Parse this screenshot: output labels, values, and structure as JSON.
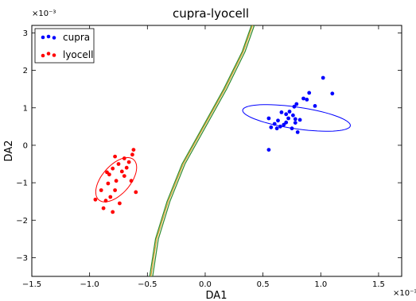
{
  "chart_data": {
    "type": "scatter",
    "title": "cupra-lyocell",
    "xlabel": "DA1",
    "ylabel": "DA2",
    "xlim": [
      -1.5,
      1.7
    ],
    "ylim": [
      -3.5,
      3.2
    ],
    "x_multiplier_label": "×10⁻³",
    "y_multiplier_label": "×10⁻³",
    "x_ticks": [
      -1.5,
      -1.0,
      -0.5,
      0.0,
      0.5,
      1.0,
      1.5
    ],
    "x_tick_labels": [
      "−1.5",
      "−1.0",
      "−0.5",
      "0.0",
      "0.5",
      "1.0",
      "1.5"
    ],
    "y_ticks": [
      -3,
      -2,
      -1,
      0,
      1,
      2,
      3
    ],
    "y_tick_labels": [
      "−3",
      "−2",
      "−1",
      "0",
      "1",
      "2",
      "3"
    ],
    "grid": false,
    "legend_position": "top-left",
    "series": [
      {
        "name": "cupra",
        "color": "#0000ff",
        "points": [
          [
            0.55,
            0.72
          ],
          [
            0.57,
            0.48
          ],
          [
            0.6,
            0.57
          ],
          [
            0.62,
            0.45
          ],
          [
            0.63,
            0.66
          ],
          [
            0.65,
            0.5
          ],
          [
            0.66,
            0.88
          ],
          [
            0.68,
            0.55
          ],
          [
            0.7,
            0.61
          ],
          [
            0.72,
            0.72
          ],
          [
            0.73,
            0.9
          ],
          [
            0.75,
            0.45
          ],
          [
            0.76,
            0.8
          ],
          [
            0.77,
            1.03
          ],
          [
            0.78,
            0.6
          ],
          [
            0.79,
            1.1
          ],
          [
            0.8,
            0.35
          ],
          [
            0.82,
            0.68
          ],
          [
            0.85,
            1.25
          ],
          [
            0.88,
            1.22
          ],
          [
            0.9,
            1.4
          ],
          [
            0.95,
            1.05
          ],
          [
            1.02,
            1.8
          ],
          [
            1.1,
            1.38
          ],
          [
            0.55,
            -0.12
          ],
          [
            0.78,
            0.7
          ],
          [
            0.7,
            0.83
          ]
        ],
        "ellipse": {
          "cx": 0.79,
          "cy": 0.73,
          "rx": 0.52,
          "ry": 1.05,
          "angle_deg": 58
        }
      },
      {
        "name": "lyocell",
        "color": "#ff0000",
        "points": [
          [
            -0.95,
            -1.45
          ],
          [
            -0.9,
            -1.2
          ],
          [
            -0.88,
            -1.68
          ],
          [
            -0.86,
            -1.48
          ],
          [
            -0.84,
            -1.02
          ],
          [
            -0.83,
            -0.78
          ],
          [
            -0.82,
            -1.38
          ],
          [
            -0.8,
            -1.78
          ],
          [
            -0.8,
            -0.62
          ],
          [
            -0.78,
            -1.2
          ],
          [
            -0.77,
            -0.95
          ],
          [
            -0.75,
            -0.5
          ],
          [
            -0.74,
            -1.55
          ],
          [
            -0.72,
            -0.7
          ],
          [
            -0.7,
            -0.82
          ],
          [
            -0.7,
            -0.35
          ],
          [
            -0.68,
            -0.6
          ],
          [
            -0.66,
            -0.45
          ],
          [
            -0.64,
            -0.95
          ],
          [
            -0.63,
            -0.25
          ],
          [
            -0.62,
            -0.12
          ],
          [
            -0.6,
            -1.25
          ],
          [
            -0.85,
            -0.72
          ],
          [
            -0.78,
            -0.3
          ]
        ],
        "ellipse": {
          "cx": -0.77,
          "cy": -0.92,
          "rx": 0.29,
          "ry": 1.2,
          "angle_deg": -10
        }
      }
    ],
    "decision_boundary": {
      "colors": [
        "#2e8b2e",
        "#d8a32a",
        "#2e8b2e"
      ],
      "curves": [
        [
          [
            -0.48,
            -3.5
          ],
          [
            -0.43,
            -2.5
          ],
          [
            -0.33,
            -1.5
          ],
          [
            -0.2,
            -0.5
          ],
          [
            -0.02,
            0.5
          ],
          [
            0.16,
            1.5
          ],
          [
            0.32,
            2.5
          ],
          [
            0.4,
            3.2
          ]
        ],
        [
          [
            -0.47,
            -3.5
          ],
          [
            -0.42,
            -2.5
          ],
          [
            -0.32,
            -1.5
          ],
          [
            -0.19,
            -0.5
          ],
          [
            -0.01,
            0.5
          ],
          [
            0.17,
            1.5
          ],
          [
            0.33,
            2.5
          ],
          [
            0.41,
            3.2
          ]
        ],
        [
          [
            -0.455,
            -3.5
          ],
          [
            -0.405,
            -2.5
          ],
          [
            -0.305,
            -1.5
          ],
          [
            -0.175,
            -0.5
          ],
          [
            0.005,
            0.5
          ],
          [
            0.185,
            1.5
          ],
          [
            0.345,
            2.5
          ],
          [
            0.425,
            3.2
          ]
        ]
      ]
    }
  }
}
